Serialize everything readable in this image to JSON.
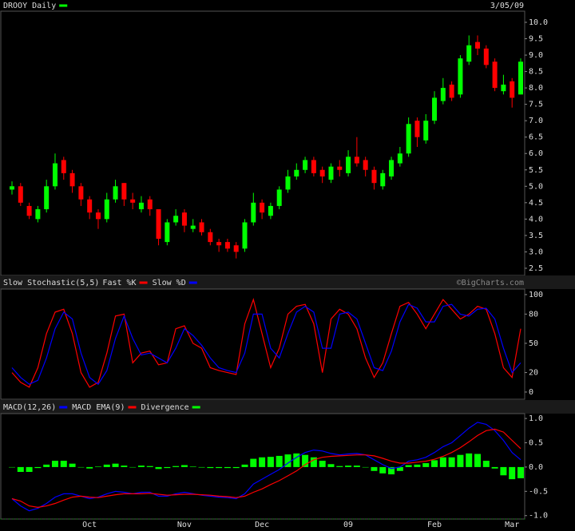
{
  "chart_data": [
    {
      "type": "candlestick",
      "title": "DROOY Daily",
      "title_color": "#00ff00",
      "date": "3/05/09",
      "up_color": "#00ff00",
      "down_color": "#ff0000",
      "open": [
        4.9,
        5.0,
        4.4,
        4.0,
        4.3,
        5.0,
        5.8,
        5.4,
        5.0,
        4.6,
        4.2,
        4.0,
        4.6,
        5.1,
        4.6,
        4.3,
        4.6,
        4.3,
        3.3,
        3.9,
        4.2,
        3.7,
        3.9,
        3.6,
        3.3,
        3.3,
        3.2,
        3.1,
        3.9,
        4.5,
        4.1,
        4.4,
        4.9,
        5.3,
        5.5,
        5.8,
        5.5,
        5.2,
        5.6,
        5.4,
        5.9,
        5.8,
        5.5,
        5.0,
        5.3,
        5.7,
        6.0,
        7.0,
        6.4,
        7.0,
        7.6,
        8.1,
        7.8,
        8.8,
        9.4,
        9.2,
        8.8,
        7.9,
        8.2,
        7.8
      ],
      "high": [
        5.15,
        5.1,
        4.5,
        4.4,
        5.2,
        6.0,
        5.9,
        5.5,
        5.1,
        4.7,
        4.3,
        4.8,
        5.2,
        5.1,
        4.8,
        4.7,
        4.7,
        4.3,
        4.0,
        4.3,
        4.3,
        4.0,
        4.0,
        3.7,
        3.4,
        3.4,
        3.3,
        4.0,
        4.8,
        4.6,
        4.5,
        5.0,
        5.5,
        5.7,
        5.9,
        5.9,
        5.6,
        5.7,
        5.8,
        6.1,
        6.5,
        5.9,
        5.6,
        5.5,
        5.9,
        6.2,
        7.1,
        7.1,
        7.2,
        7.9,
        8.3,
        8.2,
        9.0,
        9.6,
        9.6,
        9.3,
        8.9,
        8.4,
        8.3,
        8.9
      ],
      "low": [
        4.75,
        4.4,
        4.0,
        3.9,
        4.2,
        4.9,
        5.2,
        4.8,
        4.4,
        4.0,
        3.7,
        3.9,
        4.5,
        4.4,
        4.3,
        4.2,
        4.1,
        3.2,
        3.2,
        3.8,
        3.6,
        3.6,
        3.5,
        3.2,
        3.0,
        3.0,
        2.8,
        3.0,
        3.8,
        4.0,
        4.0,
        4.3,
        4.8,
        5.2,
        5.4,
        5.3,
        5.1,
        5.1,
        5.3,
        5.3,
        5.6,
        5.3,
        4.9,
        4.9,
        5.2,
        5.6,
        5.9,
        6.2,
        6.3,
        6.9,
        7.5,
        7.6,
        7.7,
        8.7,
        9.0,
        8.6,
        7.9,
        7.8,
        7.4,
        7.8
      ],
      "close": [
        5.0,
        4.5,
        4.1,
        4.3,
        5.0,
        5.7,
        5.4,
        5.0,
        4.6,
        4.2,
        4.0,
        4.6,
        5.0,
        4.6,
        4.5,
        4.5,
        4.3,
        3.4,
        3.9,
        4.1,
        3.8,
        3.8,
        3.6,
        3.3,
        3.2,
        3.1,
        3.0,
        3.9,
        4.5,
        4.2,
        4.4,
        4.9,
        5.3,
        5.5,
        5.8,
        5.4,
        5.3,
        5.6,
        5.5,
        5.9,
        5.7,
        5.5,
        5.1,
        5.4,
        5.8,
        6.0,
        6.9,
        6.5,
        7.0,
        7.7,
        8.0,
        7.7,
        8.9,
        9.3,
        9.2,
        8.7,
        8.0,
        8.1,
        7.7,
        8.8
      ],
      "ylim": [
        2.28,
        10.34
      ],
      "yticks": [
        2.5,
        {
          "value": 3,
          "label": "3.0"
        },
        3.5,
        {
          "value": 4,
          "label": "4.0"
        },
        4.5,
        {
          "value": 5,
          "label": "5.0"
        },
        5.5,
        {
          "value": 6,
          "label": "6.0"
        },
        6.5,
        {
          "value": 7,
          "label": "7.0"
        },
        7.5,
        {
          "value": 8,
          "label": "8.0"
        },
        8.5,
        {
          "value": 9,
          "label": "9.0"
        },
        9.5,
        {
          "value": 10,
          "label": "10.0"
        }
      ]
    },
    {
      "type": "line",
      "title": "Slow Stochastic(5,5)",
      "watermark": "©BigCharts.com",
      "series": [
        {
          "name": "Fast %K",
          "color": "#ff0000",
          "values": [
            20,
            10,
            5,
            25,
            60,
            82,
            85,
            60,
            20,
            5,
            10,
            40,
            78,
            80,
            30,
            40,
            42,
            28,
            30,
            65,
            68,
            50,
            45,
            25,
            22,
            20,
            18,
            70,
            95,
            60,
            25,
            45,
            80,
            88,
            90,
            70,
            20,
            75,
            85,
            80,
            65,
            35,
            15,
            30,
            60,
            88,
            92,
            80,
            65,
            80,
            95,
            85,
            75,
            80,
            88,
            85,
            60,
            25,
            15,
            65
          ]
        },
        {
          "name": "Slow %D",
          "color": "#0000ff",
          "values": [
            25,
            15,
            8,
            12,
            35,
            65,
            82,
            75,
            40,
            15,
            8,
            22,
            55,
            78,
            55,
            38,
            40,
            35,
            30,
            45,
            65,
            58,
            48,
            35,
            25,
            22,
            20,
            40,
            80,
            80,
            45,
            35,
            60,
            82,
            88,
            82,
            45,
            45,
            80,
            82,
            75,
            50,
            25,
            22,
            42,
            72,
            90,
            86,
            72,
            72,
            88,
            90,
            80,
            78,
            85,
            86,
            75,
            45,
            20,
            30
          ]
        }
      ],
      "ylim": [
        -7.4,
        105.7
      ],
      "yticks": [
        0,
        20,
        50,
        80,
        100
      ]
    },
    {
      "type": "macd",
      "series": [
        {
          "name": "MACD(12,26)",
          "color": "#0000ff",
          "style": "line",
          "values": [
            -0.65,
            -0.8,
            -0.9,
            -0.85,
            -0.75,
            -0.62,
            -0.55,
            -0.55,
            -0.6,
            -0.65,
            -0.62,
            -0.55,
            -0.5,
            -0.52,
            -0.55,
            -0.52,
            -0.52,
            -0.6,
            -0.6,
            -0.55,
            -0.52,
            -0.55,
            -0.58,
            -0.6,
            -0.62,
            -0.63,
            -0.65,
            -0.55,
            -0.35,
            -0.25,
            -0.15,
            -0.05,
            0.08,
            0.2,
            0.3,
            0.35,
            0.33,
            0.28,
            0.25,
            0.27,
            0.28,
            0.25,
            0.15,
            0.05,
            -0.03,
            0.0,
            0.12,
            0.15,
            0.2,
            0.3,
            0.42,
            0.5,
            0.65,
            0.8,
            0.92,
            0.88,
            0.75,
            0.55,
            0.3,
            0.15
          ]
        },
        {
          "name": "MACD EMA(9)",
          "color": "#ff0000",
          "style": "line",
          "values": [
            -0.65,
            -0.7,
            -0.8,
            -0.83,
            -0.8,
            -0.75,
            -0.68,
            -0.62,
            -0.6,
            -0.62,
            -0.63,
            -0.6,
            -0.57,
            -0.55,
            -0.55,
            -0.55,
            -0.54,
            -0.56,
            -0.58,
            -0.57,
            -0.56,
            -0.56,
            -0.57,
            -0.58,
            -0.6,
            -0.61,
            -0.63,
            -0.6,
            -0.52,
            -0.45,
            -0.36,
            -0.28,
            -0.18,
            -0.08,
            0.05,
            0.15,
            0.2,
            0.22,
            0.23,
            0.24,
            0.25,
            0.25,
            0.23,
            0.18,
            0.12,
            0.08,
            0.08,
            0.1,
            0.12,
            0.16,
            0.22,
            0.3,
            0.4,
            0.52,
            0.65,
            0.75,
            0.78,
            0.72,
            0.55,
            0.38
          ]
        },
        {
          "name": "Divergence",
          "color": "#00ff00",
          "style": "bar",
          "values": [
            0,
            -0.1,
            -0.1,
            -0.02,
            0.05,
            0.13,
            0.13,
            0.07,
            0,
            -0.03,
            0.01,
            0.05,
            0.07,
            0.03,
            0,
            0.03,
            0.02,
            -0.04,
            -0.02,
            0.02,
            0.04,
            0.01,
            -0.01,
            -0.02,
            -0.02,
            -0.02,
            -0.02,
            0.05,
            0.17,
            0.2,
            0.21,
            0.23,
            0.26,
            0.28,
            0.25,
            0.2,
            0.13,
            0.06,
            0.02,
            0.03,
            0.03,
            0,
            -0.08,
            -0.13,
            -0.15,
            -0.08,
            0.04,
            0.05,
            0.08,
            0.14,
            0.2,
            0.2,
            0.25,
            0.28,
            0.27,
            0.13,
            -0.03,
            -0.17,
            -0.25,
            -0.23
          ]
        }
      ],
      "categories": [
        null,
        null,
        null,
        null,
        null,
        null,
        null,
        null,
        null,
        "Oct",
        null,
        null,
        null,
        null,
        null,
        null,
        null,
        null,
        null,
        null,
        "Nov",
        null,
        null,
        null,
        null,
        null,
        null,
        null,
        null,
        "Dec",
        null,
        null,
        null,
        null,
        null,
        null,
        null,
        null,
        null,
        "09",
        null,
        null,
        null,
        null,
        null,
        null,
        null,
        null,
        null,
        "Feb",
        null,
        null,
        null,
        null,
        null,
        null,
        null,
        null,
        "Mar",
        null
      ],
      "ylim": [
        -1.07,
        1.1
      ],
      "yticks": [
        {
          "value": 1,
          "label": "1.0"
        },
        0.5,
        {
          "value": 0,
          "label": "0.0"
        },
        -0.5,
        {
          "value": -1,
          "label": "-1.0"
        }
      ]
    }
  ]
}
